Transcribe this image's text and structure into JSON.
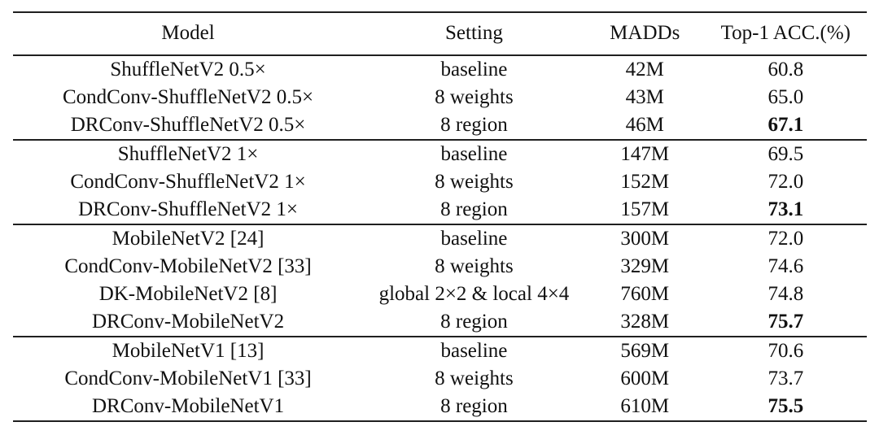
{
  "table": {
    "columns": [
      "Model",
      "Setting",
      "MADDs",
      "Top-1 ACC.(%)"
    ],
    "groups": [
      {
        "rows": [
          {
            "model": "ShuffleNetV2 0.5×",
            "setting": "baseline",
            "madds": "42M",
            "acc": "60.8",
            "acc_bold": false
          },
          {
            "model": "CondConv-ShuffleNetV2 0.5×",
            "setting": "8 weights",
            "madds": "43M",
            "acc": "65.0",
            "acc_bold": false
          },
          {
            "model": "DRConv-ShuffleNetV2 0.5×",
            "setting": "8 region",
            "madds": "46M",
            "acc": "67.1",
            "acc_bold": true
          }
        ]
      },
      {
        "rows": [
          {
            "model": "ShuffleNetV2 1×",
            "setting": "baseline",
            "madds": "147M",
            "acc": "69.5",
            "acc_bold": false
          },
          {
            "model": "CondConv-ShuffleNetV2 1×",
            "setting": "8 weights",
            "madds": "152M",
            "acc": "72.0",
            "acc_bold": false
          },
          {
            "model": "DRConv-ShuffleNetV2 1×",
            "setting": "8 region",
            "madds": "157M",
            "acc": "73.1",
            "acc_bold": true
          }
        ]
      },
      {
        "rows": [
          {
            "model": "MobileNetV2 [24]",
            "setting": "baseline",
            "madds": "300M",
            "acc": "72.0",
            "acc_bold": false
          },
          {
            "model": "CondConv-MobileNetV2 [33]",
            "setting": "8 weights",
            "madds": "329M",
            "acc": "74.6",
            "acc_bold": false
          },
          {
            "model": "DK-MobileNetV2 [8]",
            "setting": "global 2×2 & local 4×4",
            "madds": "760M",
            "acc": "74.8",
            "acc_bold": false
          },
          {
            "model": "DRConv-MobileNetV2",
            "setting": "8 region",
            "madds": "328M",
            "acc": "75.7",
            "acc_bold": true
          }
        ]
      },
      {
        "rows": [
          {
            "model": "MobileNetV1 [13]",
            "setting": "baseline",
            "madds": "569M",
            "acc": "70.6",
            "acc_bold": false
          },
          {
            "model": "CondConv-MobileNetV1 [33]",
            "setting": "8 weights",
            "madds": "600M",
            "acc": "73.7",
            "acc_bold": false
          },
          {
            "model": "DRConv-MobileNetV1",
            "setting": "8 region",
            "madds": "610M",
            "acc": "75.5",
            "acc_bold": true
          }
        ]
      }
    ],
    "colors": {
      "rule": "#1f1f1f",
      "text": "#111111",
      "background": "#ffffff"
    }
  }
}
